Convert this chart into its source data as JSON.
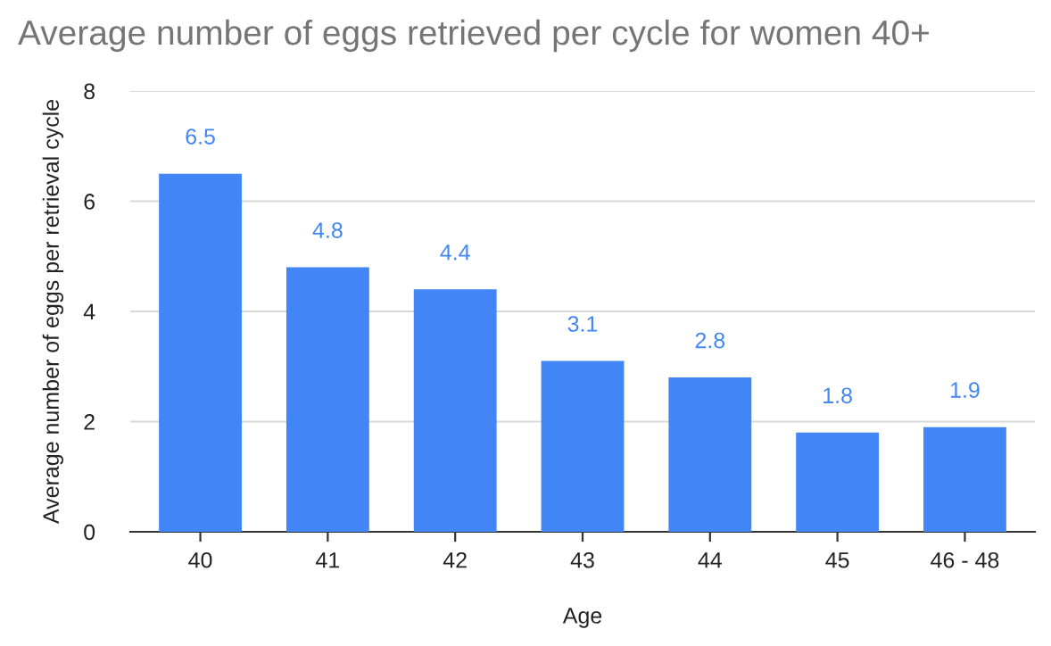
{
  "chart_data": {
    "type": "bar",
    "title": "Average number of eggs retrieved per cycle for women 40+",
    "xlabel": "Age",
    "ylabel": "Average number of eggs per retrieval cycle",
    "categories": [
      "40",
      "41",
      "42",
      "43",
      "44",
      "45",
      "46 - 48"
    ],
    "values": [
      6.5,
      4.8,
      4.4,
      3.1,
      2.8,
      1.8,
      1.9
    ],
    "color": "#4285f4",
    "ylim": [
      0,
      8
    ],
    "yticks": [
      0,
      2,
      4,
      6,
      8
    ],
    "grid": "y",
    "data_labels": true,
    "legend": false
  }
}
